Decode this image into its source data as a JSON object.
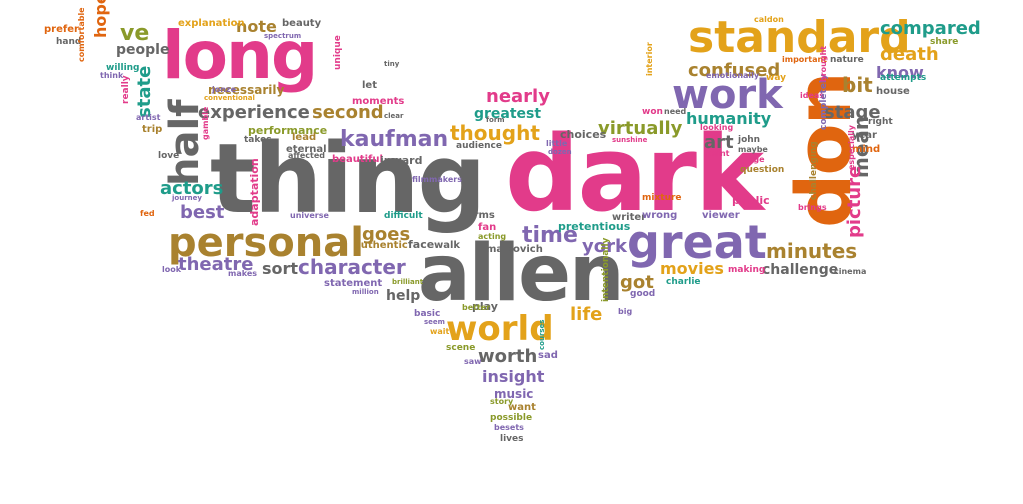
{
  "words": [
    {
      "text": "thing",
      "color": "#666666",
      "rotate": false
    },
    {
      "text": "dark",
      "color": "#e23b8a",
      "rotate": false
    },
    {
      "text": "allen",
      "color": "#666666",
      "rotate": false
    },
    {
      "text": "long",
      "color": "#e23b8a",
      "rotate": false
    },
    {
      "text": "don",
      "color": "#e0650f",
      "rotate": true
    },
    {
      "text": "standard",
      "color": "#e3a21a",
      "rotate": false
    },
    {
      "text": "great",
      "color": "#8067b0",
      "rotate": false
    },
    {
      "text": "personal",
      "color": "#a9822f",
      "rotate": false
    },
    {
      "text": "work",
      "color": "#8067b0",
      "rotate": false
    },
    {
      "text": "world",
      "color": "#e3a21a",
      "rotate": false
    },
    {
      "text": "half",
      "color": "#666666",
      "rotate": true
    },
    {
      "text": "kaufman",
      "color": "#8067b0",
      "rotate": false
    },
    {
      "text": "character",
      "color": "#8067b0",
      "rotate": false
    },
    {
      "text": "experience",
      "color": "#666666",
      "rotate": false
    },
    {
      "text": "time",
      "color": "#8067b0",
      "rotate": false
    },
    {
      "text": "minutes",
      "color": "#a9822f",
      "rotate": false
    },
    {
      "text": "thought",
      "color": "#e3a21a",
      "rotate": false
    },
    {
      "text": "compared",
      "color": "#1f9c8a",
      "rotate": false
    },
    {
      "text": "death",
      "color": "#e3a21a",
      "rotate": false
    },
    {
      "text": "confused",
      "color": "#a9822f",
      "rotate": false
    },
    {
      "text": "virtually",
      "color": "#8a9a2a",
      "rotate": false
    },
    {
      "text": "humanity",
      "color": "#1f9c8a",
      "rotate": false
    },
    {
      "text": "stage",
      "color": "#666666",
      "rotate": false
    },
    {
      "text": "mean",
      "color": "#666666",
      "rotate": true
    },
    {
      "text": "picture",
      "color": "#e23b8a",
      "rotate": true
    },
    {
      "text": "bit",
      "color": "#a9822f",
      "rotate": false
    },
    {
      "text": "know",
      "color": "#8067b0",
      "rotate": false
    },
    {
      "text": "second",
      "color": "#a9822f",
      "rotate": false
    },
    {
      "text": "nearly",
      "color": "#e23b8a",
      "rotate": false
    },
    {
      "text": "greatest",
      "color": "#1f9c8a",
      "rotate": false
    },
    {
      "text": "actors",
      "color": "#1f9c8a",
      "rotate": false
    },
    {
      "text": "best",
      "color": "#8067b0",
      "rotate": false
    },
    {
      "text": "theatre",
      "color": "#8067b0",
      "rotate": false
    },
    {
      "text": "goes",
      "color": "#a9822f",
      "rotate": false
    },
    {
      "text": "york",
      "color": "#8067b0",
      "rotate": false
    },
    {
      "text": "movies",
      "color": "#e3a21a",
      "rotate": false
    },
    {
      "text": "got",
      "color": "#a9822f",
      "rotate": false
    },
    {
      "text": "life",
      "color": "#e3a21a",
      "rotate": false
    },
    {
      "text": "sort",
      "color": "#666666",
      "rotate": false
    },
    {
      "text": "help",
      "color": "#666666",
      "rotate": false
    },
    {
      "text": "worth",
      "color": "#666666",
      "rotate": false
    },
    {
      "text": "insight",
      "color": "#8067b0",
      "rotate": false
    },
    {
      "text": "music",
      "color": "#8067b0",
      "rotate": false
    },
    {
      "text": "want",
      "color": "#a9822f",
      "rotate": false
    },
    {
      "text": "possible",
      "color": "#8a9a2a",
      "rotate": false
    },
    {
      "text": "besets",
      "color": "#8067b0",
      "rotate": false
    },
    {
      "text": "lives",
      "color": "#666666",
      "rotate": false
    },
    {
      "text": "art",
      "color": "#666666",
      "rotate": false
    },
    {
      "text": "challenge",
      "color": "#666666",
      "rotate": false
    },
    {
      "text": "public",
      "color": "#e23b8a",
      "rotate": false
    },
    {
      "text": "ve",
      "color": "#8a9a2a",
      "rotate": false
    },
    {
      "text": "hope",
      "color": "#e0650f",
      "rotate": true
    },
    {
      "text": "people",
      "color": "#666666",
      "rotate": false
    },
    {
      "text": "state",
      "color": "#1f9c8a",
      "rotate": true
    },
    {
      "text": "note",
      "color": "#a9822f",
      "rotate": false
    },
    {
      "text": "beauty",
      "color": "#666666",
      "rotate": false
    },
    {
      "text": "explanation",
      "color": "#e3a21a",
      "rotate": false
    },
    {
      "text": "prefer",
      "color": "#e0650f",
      "rotate": false
    },
    {
      "text": "hand",
      "color": "#666666",
      "rotate": false
    },
    {
      "text": "necessarily",
      "color": "#a9822f",
      "rotate": false
    },
    {
      "text": "moments",
      "color": "#e23b8a",
      "rotate": false
    },
    {
      "text": "performance",
      "color": "#8a9a2a",
      "rotate": false
    },
    {
      "text": "lead",
      "color": "#a9822f",
      "rotate": false
    },
    {
      "text": "eternal",
      "color": "#666666",
      "rotate": false
    },
    {
      "text": "beautiful",
      "color": "#e23b8a",
      "rotate": false
    },
    {
      "text": "inward",
      "color": "#666666",
      "rotate": false
    },
    {
      "text": "choices",
      "color": "#666666",
      "rotate": false
    },
    {
      "text": "terms",
      "color": "#666666",
      "rotate": false
    },
    {
      "text": "fan",
      "color": "#e23b8a",
      "rotate": false
    },
    {
      "text": "acting",
      "color": "#8a9a2a",
      "rotate": false
    },
    {
      "text": "malkovich",
      "color": "#666666",
      "rotate": false
    },
    {
      "text": "pretentious",
      "color": "#1f9c8a",
      "rotate": false
    },
    {
      "text": "writer",
      "color": "#666666",
      "rotate": false
    },
    {
      "text": "wrong",
      "color": "#8067b0",
      "rotate": false
    },
    {
      "text": "viewer",
      "color": "#8067b0",
      "rotate": false
    },
    {
      "text": "face",
      "color": "#666666",
      "rotate": false
    },
    {
      "text": "walk",
      "color": "#666666",
      "rotate": false
    },
    {
      "text": "authentic",
      "color": "#a9822f",
      "rotate": false
    },
    {
      "text": "statement",
      "color": "#8067b0",
      "rotate": false
    },
    {
      "text": "play",
      "color": "#666666",
      "rotate": false
    },
    {
      "text": "better",
      "color": "#8a9a2a",
      "rotate": false
    },
    {
      "text": "basic",
      "color": "#8067b0",
      "rotate": false
    },
    {
      "text": "scene",
      "color": "#8a9a2a",
      "rotate": false
    },
    {
      "text": "sad",
      "color": "#8067b0",
      "rotate": false
    },
    {
      "text": "charlie",
      "color": "#1f9c8a",
      "rotate": false
    },
    {
      "text": "good",
      "color": "#8067b0",
      "rotate": false
    },
    {
      "text": "cinema",
      "color": "#666666",
      "rotate": false
    },
    {
      "text": "making",
      "color": "#e23b8a",
      "rotate": false
    },
    {
      "text": "adaptation",
      "color": "#e23b8a",
      "rotate": true
    },
    {
      "text": "universe",
      "color": "#8067b0",
      "rotate": false
    },
    {
      "text": "difficult",
      "color": "#1f9c8a",
      "rotate": false
    },
    {
      "text": "intentionally",
      "color": "#8a9a2a",
      "rotate": true
    },
    {
      "text": "courses",
      "color": "#1f9c8a",
      "rotate": true
    },
    {
      "text": "willing",
      "color": "#1f9c8a",
      "rotate": false
    },
    {
      "text": "really",
      "color": "#e23b8a",
      "rotate": true
    },
    {
      "text": "trip",
      "color": "#a9822f",
      "rotate": false
    },
    {
      "text": "love",
      "color": "#666666",
      "rotate": false
    },
    {
      "text": "year",
      "color": "#666666",
      "rotate": false
    },
    {
      "text": "mind",
      "color": "#e0650f",
      "rotate": false
    },
    {
      "text": "house",
      "color": "#666666",
      "rotate": false
    },
    {
      "text": "attempts",
      "color": "#1f9c8a",
      "rotate": false
    },
    {
      "text": "share",
      "color": "#8a9a2a",
      "rotate": false
    },
    {
      "text": "nature",
      "color": "#666666",
      "rotate": false
    },
    {
      "text": "way",
      "color": "#e3a21a",
      "rotate": false
    },
    {
      "text": "emotionally",
      "color": "#8067b0",
      "rotate": false
    },
    {
      "text": "ideas",
      "color": "#e23b8a",
      "rotate": false
    },
    {
      "text": "john",
      "color": "#666666",
      "rotate": false
    },
    {
      "text": "maybe",
      "color": "#666666",
      "rotate": false
    },
    {
      "text": "age",
      "color": "#e23b8a",
      "rotate": false
    },
    {
      "text": "question",
      "color": "#a9822f",
      "rotate": false
    },
    {
      "text": "mixture",
      "color": "#e0650f",
      "rotate": false
    },
    {
      "text": "brings",
      "color": "#e23b8a",
      "rotate": false
    },
    {
      "text": "completely",
      "color": "#8067b0",
      "rotate": true
    },
    {
      "text": "challenging",
      "color": "#a9822f",
      "rotate": true
    },
    {
      "text": "especially",
      "color": "#e23b8a",
      "rotate": true
    },
    {
      "text": "let",
      "color": "#666666",
      "rotate": false
    },
    {
      "text": "clear",
      "color": "#666666",
      "rotate": false
    },
    {
      "text": "audience",
      "color": "#666666",
      "rotate": false
    },
    {
      "text": "filmmakers",
      "color": "#8067b0",
      "rotate": false
    },
    {
      "text": "jonze",
      "color": "#8067b0",
      "rotate": false
    },
    {
      "text": "conventional",
      "color": "#e3a21a",
      "rotate": false
    },
    {
      "text": "gamble",
      "color": "#e23b8a",
      "rotate": true
    },
    {
      "text": "takes",
      "color": "#666666",
      "rotate": false
    },
    {
      "text": "affected",
      "color": "#666666",
      "rotate": false
    },
    {
      "text": "artist",
      "color": "#8067b0",
      "rotate": false
    },
    {
      "text": "look",
      "color": "#8067b0",
      "rotate": false
    },
    {
      "text": "makes",
      "color": "#8067b0",
      "rotate": false
    },
    {
      "text": "fed",
      "color": "#e0650f",
      "rotate": false
    },
    {
      "text": "journey",
      "color": "#8067b0",
      "rotate": false
    },
    {
      "text": "million",
      "color": "#8067b0",
      "rotate": false
    },
    {
      "text": "brilliant",
      "color": "#8a9a2a",
      "rotate": false
    },
    {
      "text": "seem",
      "color": "#8067b0",
      "rotate": false
    },
    {
      "text": "wait",
      "color": "#e3a21a",
      "rotate": false
    },
    {
      "text": "saw",
      "color": "#8067b0",
      "rotate": false
    },
    {
      "text": "story",
      "color": "#8a9a2a",
      "rotate": false
    },
    {
      "text": "big",
      "color": "#8067b0",
      "rotate": false
    },
    {
      "text": "won",
      "color": "#e23b8a",
      "rotate": false
    },
    {
      "text": "need",
      "color": "#666666",
      "rotate": false
    },
    {
      "text": "looking",
      "color": "#e23b8a",
      "rotate": false
    },
    {
      "text": "point",
      "color": "#e23b8a",
      "rotate": false
    },
    {
      "text": "caldon",
      "color": "#e3a21a",
      "rotate": false
    },
    {
      "text": "important",
      "color": "#e0650f",
      "rotate": false
    },
    {
      "text": "brought",
      "color": "#e23b8a",
      "rotate": true
    },
    {
      "text": "right",
      "color": "#666666",
      "rotate": false
    },
    {
      "text": "comfortable",
      "color": "#e0650f",
      "rotate": true
    },
    {
      "text": "think",
      "color": "#8067b0",
      "rotate": false
    },
    {
      "text": "spectrum",
      "color": "#8067b0",
      "rotate": false
    },
    {
      "text": "unique",
      "color": "#e23b8a",
      "rotate": true
    },
    {
      "text": "tiny",
      "color": "#666666",
      "rotate": false
    },
    {
      "text": "interior",
      "color": "#e3a21a",
      "rotate": true
    },
    {
      "text": "little",
      "color": "#8067b0",
      "rotate": false
    },
    {
      "text": "sunshine",
      "color": "#e23b8a",
      "rotate": false
    },
    {
      "text": "dozen",
      "color": "#8067b0",
      "rotate": false
    },
    {
      "text": "form",
      "color": "#666666",
      "rotate": false
    }
  ]
}
